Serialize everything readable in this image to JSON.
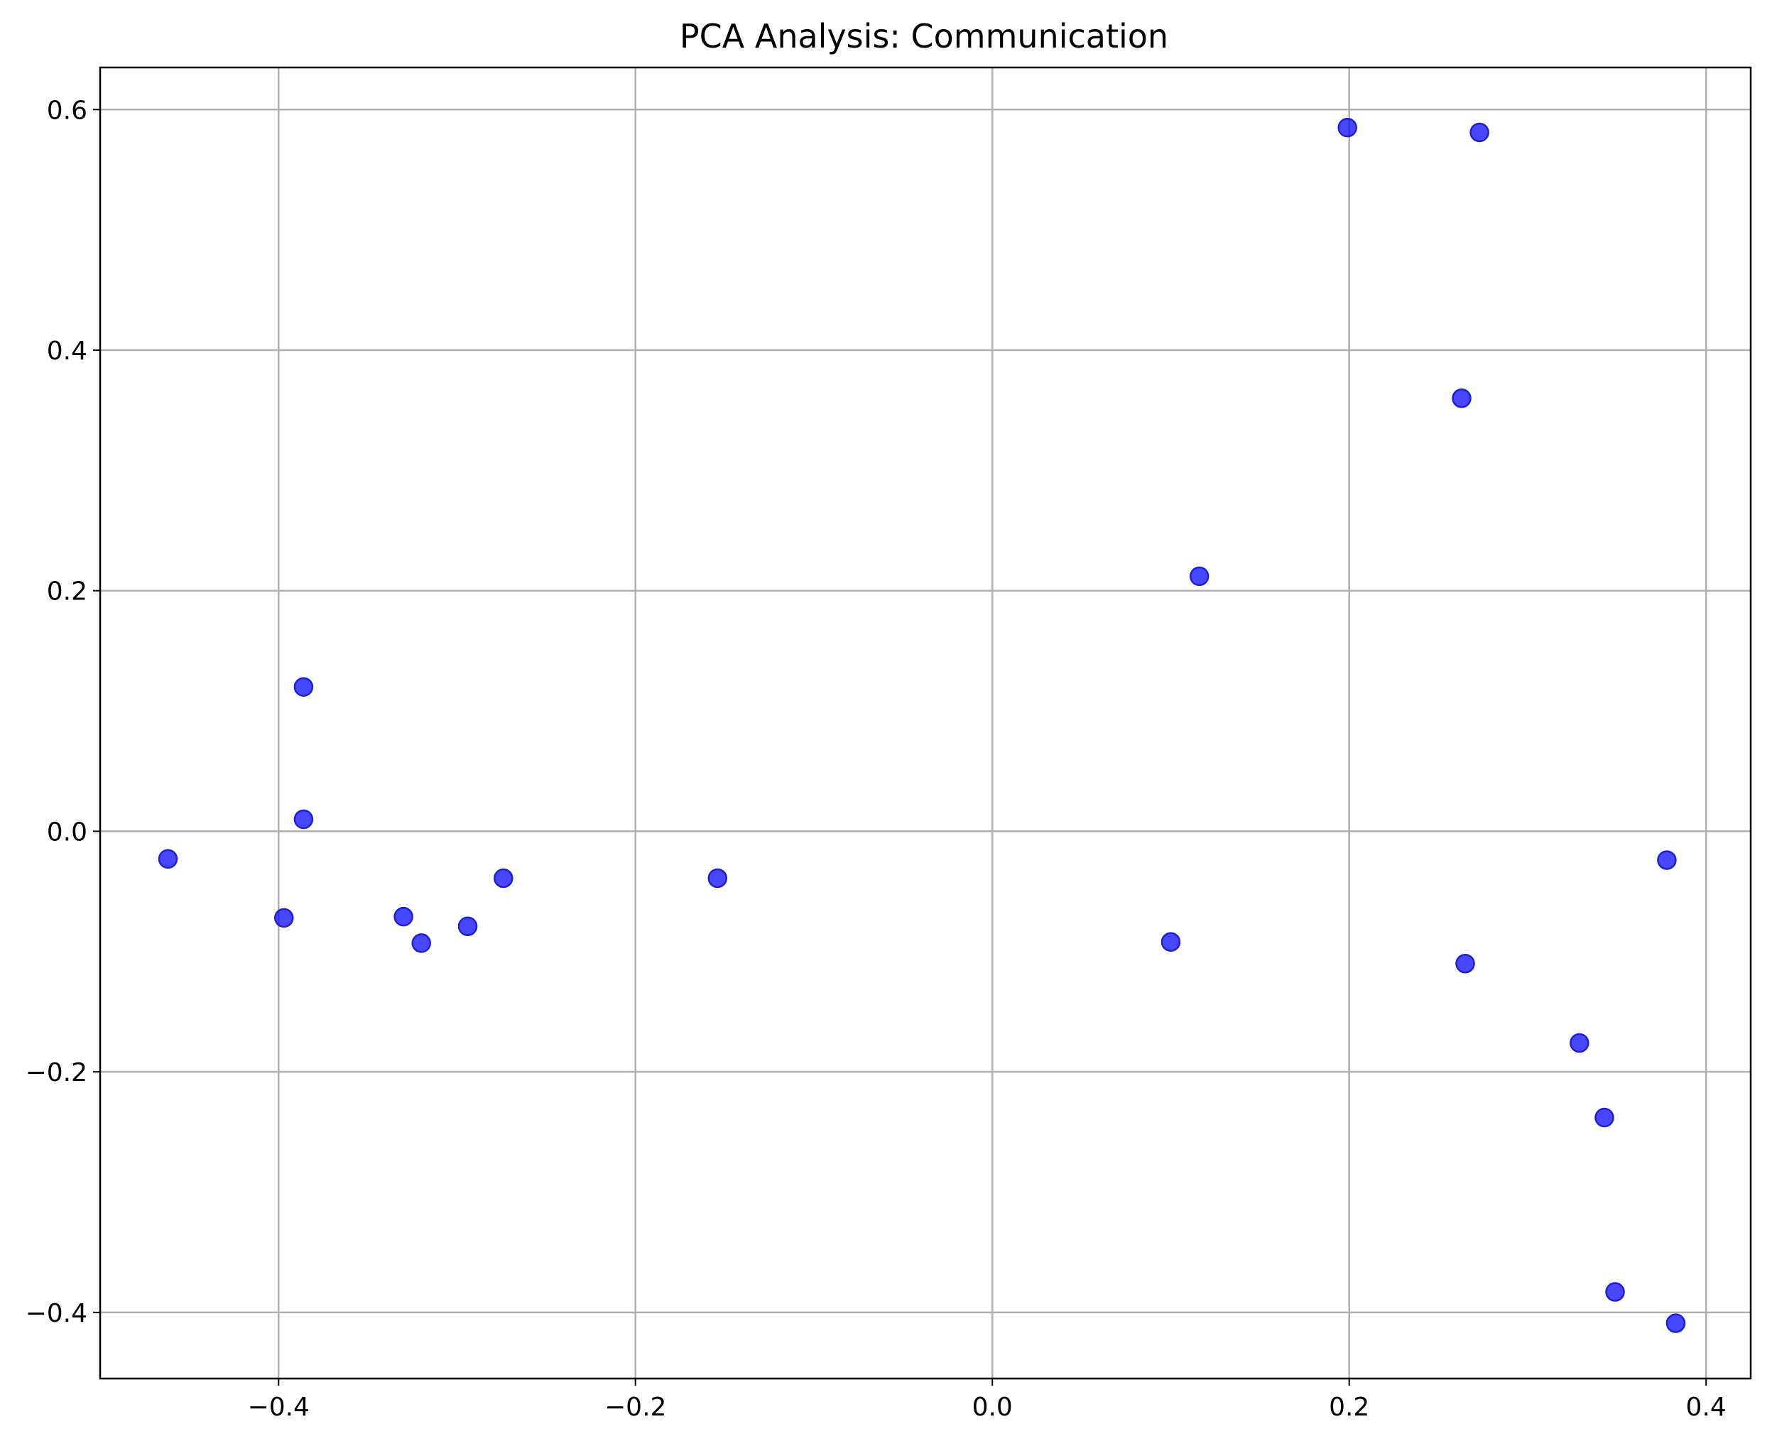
{
  "chart_data": {
    "type": "scatter",
    "title": "PCA Analysis: Communication",
    "xlabel": "",
    "ylabel": "",
    "xlim": [
      -0.5,
      0.425
    ],
    "ylim": [
      -0.455,
      0.635
    ],
    "grid": true,
    "marker_color": "#0000ff",
    "x_ticks": [
      {
        "value": -0.4,
        "label": "−0.4"
      },
      {
        "value": -0.2,
        "label": "−0.2"
      },
      {
        "value": 0.0,
        "label": "0.0"
      },
      {
        "value": 0.2,
        "label": "0.2"
      },
      {
        "value": 0.4,
        "label": "0.4"
      }
    ],
    "y_ticks": [
      {
        "value": -0.4,
        "label": "−0.4"
      },
      {
        "value": -0.2,
        "label": "−0.2"
      },
      {
        "value": 0.0,
        "label": "0.0"
      },
      {
        "value": 0.2,
        "label": "0.2"
      },
      {
        "value": 0.4,
        "label": "0.4"
      },
      {
        "value": 0.6,
        "label": "0.6"
      }
    ],
    "points": [
      {
        "x": -0.462,
        "y": -0.023
      },
      {
        "x": -0.397,
        "y": -0.072
      },
      {
        "x": -0.386,
        "y": 0.12
      },
      {
        "x": -0.386,
        "y": 0.01
      },
      {
        "x": -0.33,
        "y": -0.071
      },
      {
        "x": -0.32,
        "y": -0.093
      },
      {
        "x": -0.294,
        "y": -0.079
      },
      {
        "x": -0.274,
        "y": -0.039
      },
      {
        "x": -0.154,
        "y": -0.039
      },
      {
        "x": 0.1,
        "y": -0.092
      },
      {
        "x": 0.116,
        "y": 0.212
      },
      {
        "x": 0.199,
        "y": 0.585
      },
      {
        "x": 0.263,
        "y": 0.36
      },
      {
        "x": 0.265,
        "y": -0.11
      },
      {
        "x": 0.273,
        "y": 0.581
      },
      {
        "x": 0.329,
        "y": -0.176
      },
      {
        "x": 0.343,
        "y": -0.238
      },
      {
        "x": 0.349,
        "y": -0.383
      },
      {
        "x": 0.378,
        "y": -0.024
      },
      {
        "x": 0.383,
        "y": -0.409
      }
    ]
  }
}
